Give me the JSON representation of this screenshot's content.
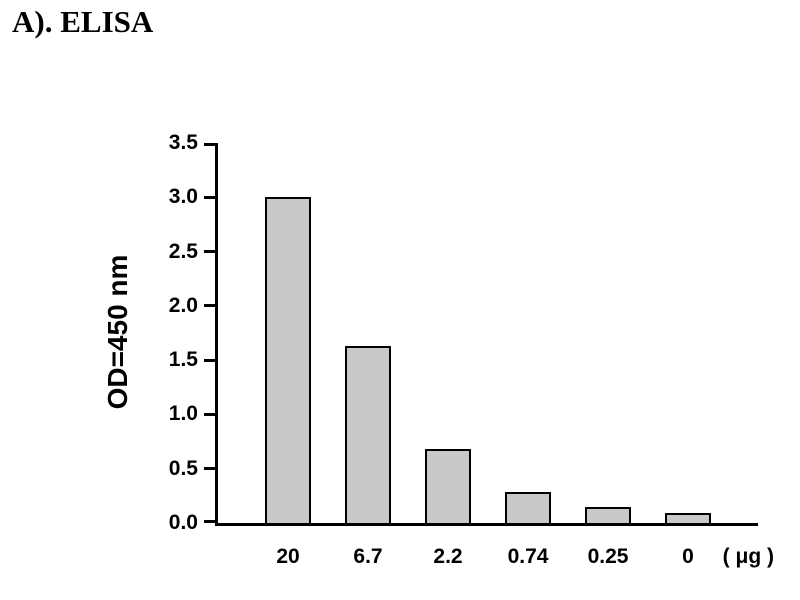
{
  "figure": {
    "title": "A). ELISA"
  },
  "chart_data": {
    "type": "bar",
    "title": "A). ELISA",
    "categories": [
      "20",
      "6.7",
      "2.2",
      "0.74",
      "0.25",
      "0"
    ],
    "values": [
      3.0,
      1.63,
      0.68,
      0.29,
      0.15,
      0.09
    ],
    "xlabel": "",
    "x_unit_label": "( μg )",
    "ylabel": "OD=450 nm",
    "ylim": [
      0,
      3.5
    ],
    "yticks": [
      0,
      0.5,
      1,
      1.5,
      2,
      2.5,
      3,
      3.5
    ],
    "ytick_decimals": 1,
    "grid": false,
    "legend": "none",
    "bar_fill_color": "#c9c9c9",
    "bar_border_color": "#000000",
    "axis_color": "#000000",
    "background_color": "#ffffff"
  }
}
